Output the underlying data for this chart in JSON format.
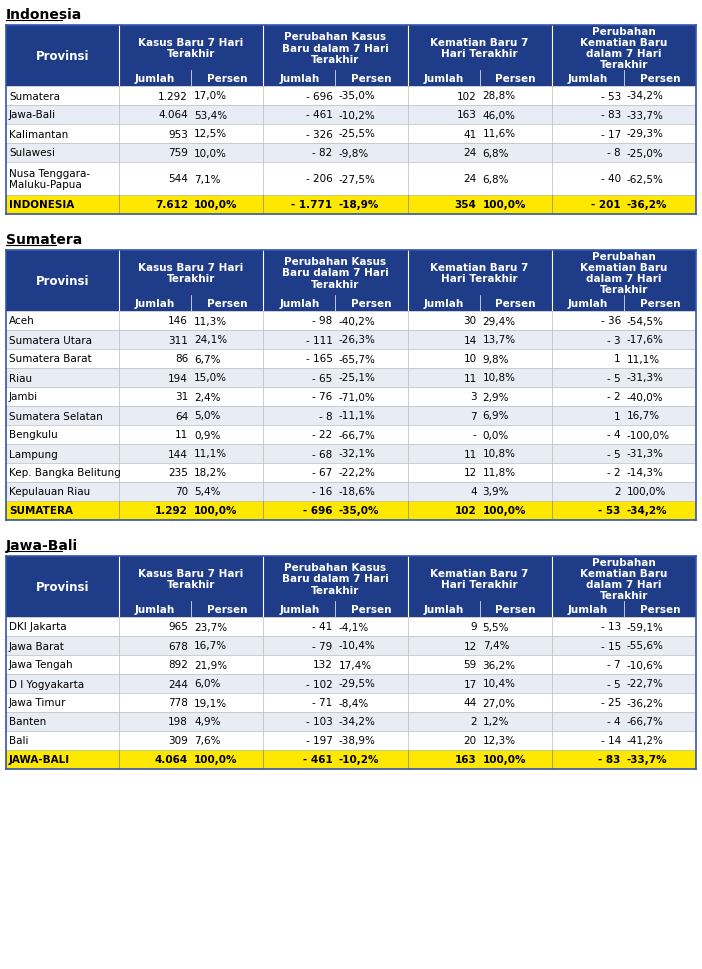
{
  "header_bg": "#1F3C88",
  "header_fg": "#FFFFFF",
  "row_bg_even": "#FFFFFF",
  "row_bg_odd": "#E8EDF5",
  "total_bg": "#FFE800",
  "total_fg": "#000000",
  "bg_color": "#FFFFFF",
  "sections": [
    {
      "title": "Indonesia",
      "rows": [
        [
          "Sumatera",
          "1.292",
          "17,0%",
          "- 696",
          "-35,0%",
          "102",
          "28,8%",
          "- 53",
          "-34,2%"
        ],
        [
          "Jawa-Bali",
          "4.064",
          "53,4%",
          "- 461",
          "-10,2%",
          "163",
          "46,0%",
          "- 83",
          "-33,7%"
        ],
        [
          "Kalimantan",
          "953",
          "12,5%",
          "- 326",
          "-25,5%",
          "41",
          "11,6%",
          "- 17",
          "-29,3%"
        ],
        [
          "Sulawesi",
          "759",
          "10,0%",
          "- 82",
          "-9,8%",
          "24",
          "6,8%",
          "- 8",
          "-25,0%"
        ],
        [
          "Nusa Tenggara-\nMaluku-Papua",
          "544",
          "7,1%",
          "- 206",
          "-27,5%",
          "24",
          "6,8%",
          "- 40",
          "-62,5%"
        ]
      ],
      "total": [
        "INDONESIA",
        "7.612",
        "100,0%",
        "- 1.771",
        "-18,9%",
        "354",
        "100,0%",
        "- 201",
        "-36,2%"
      ]
    },
    {
      "title": "Sumatera",
      "rows": [
        [
          "Aceh",
          "146",
          "11,3%",
          "- 98",
          "-40,2%",
          "30",
          "29,4%",
          "- 36",
          "-54,5%"
        ],
        [
          "Sumatera Utara",
          "311",
          "24,1%",
          "- 111",
          "-26,3%",
          "14",
          "13,7%",
          "- 3",
          "-17,6%"
        ],
        [
          "Sumatera Barat",
          "86",
          "6,7%",
          "- 165",
          "-65,7%",
          "10",
          "9,8%",
          "1",
          "11,1%"
        ],
        [
          "Riau",
          "194",
          "15,0%",
          "- 65",
          "-25,1%",
          "11",
          "10,8%",
          "- 5",
          "-31,3%"
        ],
        [
          "Jambi",
          "31",
          "2,4%",
          "- 76",
          "-71,0%",
          "3",
          "2,9%",
          "- 2",
          "-40,0%"
        ],
        [
          "Sumatera Selatan",
          "64",
          "5,0%",
          "- 8",
          "-11,1%",
          "7",
          "6,9%",
          "1",
          "16,7%"
        ],
        [
          "Bengkulu",
          "11",
          "0,9%",
          "- 22",
          "-66,7%",
          "-",
          "0,0%",
          "- 4",
          "-100,0%"
        ],
        [
          "Lampung",
          "144",
          "11,1%",
          "- 68",
          "-32,1%",
          "11",
          "10,8%",
          "- 5",
          "-31,3%"
        ],
        [
          "Kep. Bangka Belitung",
          "235",
          "18,2%",
          "- 67",
          "-22,2%",
          "12",
          "11,8%",
          "- 2",
          "-14,3%"
        ],
        [
          "Kepulauan Riau",
          "70",
          "5,4%",
          "- 16",
          "-18,6%",
          "4",
          "3,9%",
          "2",
          "100,0%"
        ]
      ],
      "total": [
        "SUMATERA",
        "1.292",
        "100,0%",
        "- 696",
        "-35,0%",
        "102",
        "100,0%",
        "- 53",
        "-34,2%"
      ]
    },
    {
      "title": "Jawa-Bali",
      "rows": [
        [
          "DKI Jakarta",
          "965",
          "23,7%",
          "- 41",
          "-4,1%",
          "9",
          "5,5%",
          "- 13",
          "-59,1%"
        ],
        [
          "Jawa Barat",
          "678",
          "16,7%",
          "- 79",
          "-10,4%",
          "12",
          "7,4%",
          "- 15",
          "-55,6%"
        ],
        [
          "Jawa Tengah",
          "892",
          "21,9%",
          "132",
          "17,4%",
          "59",
          "36,2%",
          "- 7",
          "-10,6%"
        ],
        [
          "D I Yogyakarta",
          "244",
          "6,0%",
          "- 102",
          "-29,5%",
          "17",
          "10,4%",
          "- 5",
          "-22,7%"
        ],
        [
          "Jawa Timur",
          "778",
          "19,1%",
          "- 71",
          "-8,4%",
          "44",
          "27,0%",
          "- 25",
          "-36,2%"
        ],
        [
          "Banten",
          "198",
          "4,9%",
          "- 103",
          "-34,2%",
          "2",
          "1,2%",
          "- 4",
          "-66,7%"
        ],
        [
          "Bali",
          "309",
          "7,6%",
          "- 197",
          "-38,9%",
          "20",
          "12,3%",
          "- 14",
          "-41,2%"
        ]
      ],
      "total": [
        "JAWA-BALI",
        "4.064",
        "100,0%",
        "- 461",
        "-10,2%",
        "163",
        "100,0%",
        "- 83",
        "-33,7%"
      ]
    }
  ]
}
